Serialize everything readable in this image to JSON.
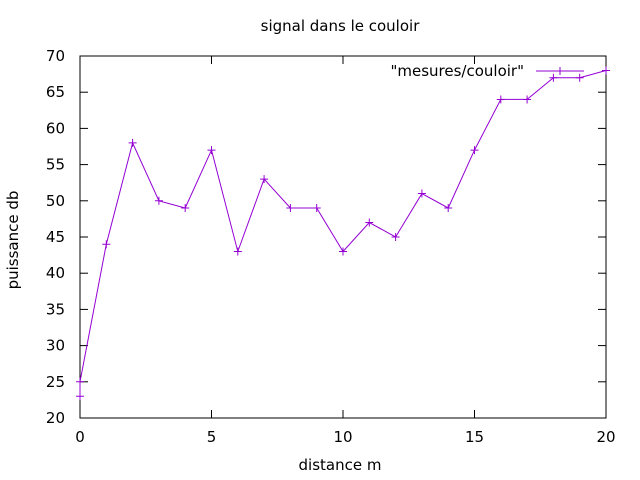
{
  "chart_data": {
    "type": "line",
    "title": "signal dans le couloir",
    "xlabel": "distance m",
    "ylabel": "puissance db",
    "xlim": [
      0,
      20
    ],
    "ylim": [
      20,
      70
    ],
    "xticks": [
      "0",
      "5",
      "10",
      "15",
      "20"
    ],
    "yticks": [
      "20",
      "25",
      "30",
      "35",
      "40",
      "45",
      "50",
      "55",
      "60",
      "65",
      "70"
    ],
    "legend_position": "top-right",
    "grid": false,
    "series": [
      {
        "name": "\"mesures/couloir\"",
        "color": "#9400d3",
        "marker": "plus",
        "x": [
          0,
          0,
          1,
          2,
          3,
          4,
          5,
          6,
          7,
          8,
          9,
          10,
          11,
          12,
          13,
          14,
          15,
          16,
          17,
          18,
          19,
          20
        ],
        "y": [
          23,
          25,
          44,
          58,
          50,
          49,
          57,
          43,
          53,
          49,
          49,
          43,
          47,
          45,
          51,
          49,
          57,
          64,
          64,
          67,
          67,
          68
        ]
      }
    ]
  }
}
